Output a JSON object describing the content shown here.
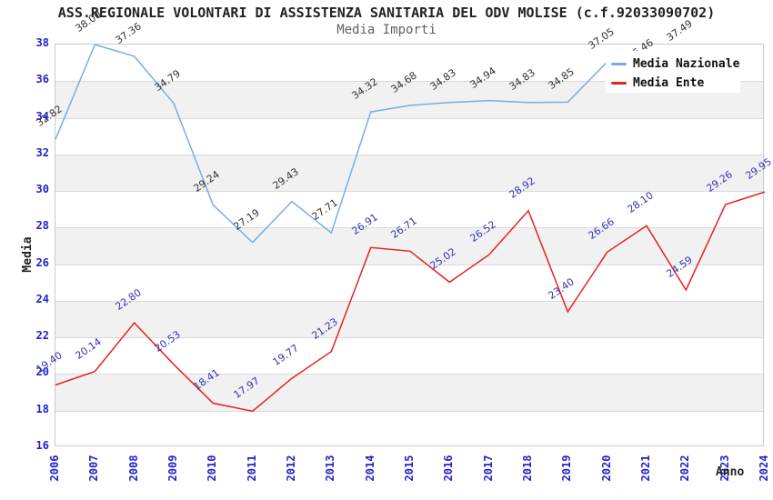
{
  "header": {
    "title": "ASS.REGIONALE VOLONTARI DI ASSISTENZA SANITARIA DEL ODV MOLISE (c.f.92033090702)",
    "subtitle": "Media Importi"
  },
  "chart_data": {
    "type": "line",
    "title": "ASS.REGIONALE VOLONTARI DI ASSISTENZA SANITARIA DEL ODV MOLISE (c.f.92033090702)",
    "subtitle": "Media Importi",
    "x_label": "Anno",
    "y_label": "Media",
    "x": [
      2006,
      2007,
      2008,
      2009,
      2010,
      2011,
      2012,
      2013,
      2014,
      2015,
      2016,
      2017,
      2018,
      2019,
      2020,
      2021,
      2022,
      2023,
      2024
    ],
    "ylim": [
      16,
      38
    ],
    "ytick_step": 2,
    "grid": true,
    "shaded_bands": [
      [
        18,
        20
      ],
      [
        22,
        24
      ],
      [
        26,
        28
      ],
      [
        30,
        32
      ],
      [
        34,
        36
      ]
    ],
    "legend_position": "top-right",
    "series": [
      {
        "name": "Media Nazionale",
        "color": "#76ade9",
        "label_color": "#333333",
        "values": [
          32.82,
          38.0,
          37.36,
          34.79,
          29.24,
          27.19,
          29.43,
          27.71,
          34.32,
          34.68,
          34.83,
          34.94,
          34.83,
          34.85,
          37.05,
          36.46,
          37.49,
          null,
          null
        ]
      },
      {
        "name": "Media Ente",
        "color": "#e62222",
        "label_color": "#3333b3",
        "values": [
          19.4,
          20.14,
          22.8,
          20.53,
          18.41,
          17.97,
          19.77,
          21.23,
          26.91,
          26.71,
          25.02,
          26.52,
          28.92,
          23.4,
          26.66,
          28.1,
          24.59,
          29.26,
          29.95
        ]
      }
    ]
  },
  "colors": {
    "tick": "#2222cc",
    "grid": "#d9d9d9",
    "band": "#f1f1f1",
    "spine": "#c9c9c9",
    "title": "#222222",
    "subtitle": "#606060",
    "axis_title": "#222222"
  }
}
